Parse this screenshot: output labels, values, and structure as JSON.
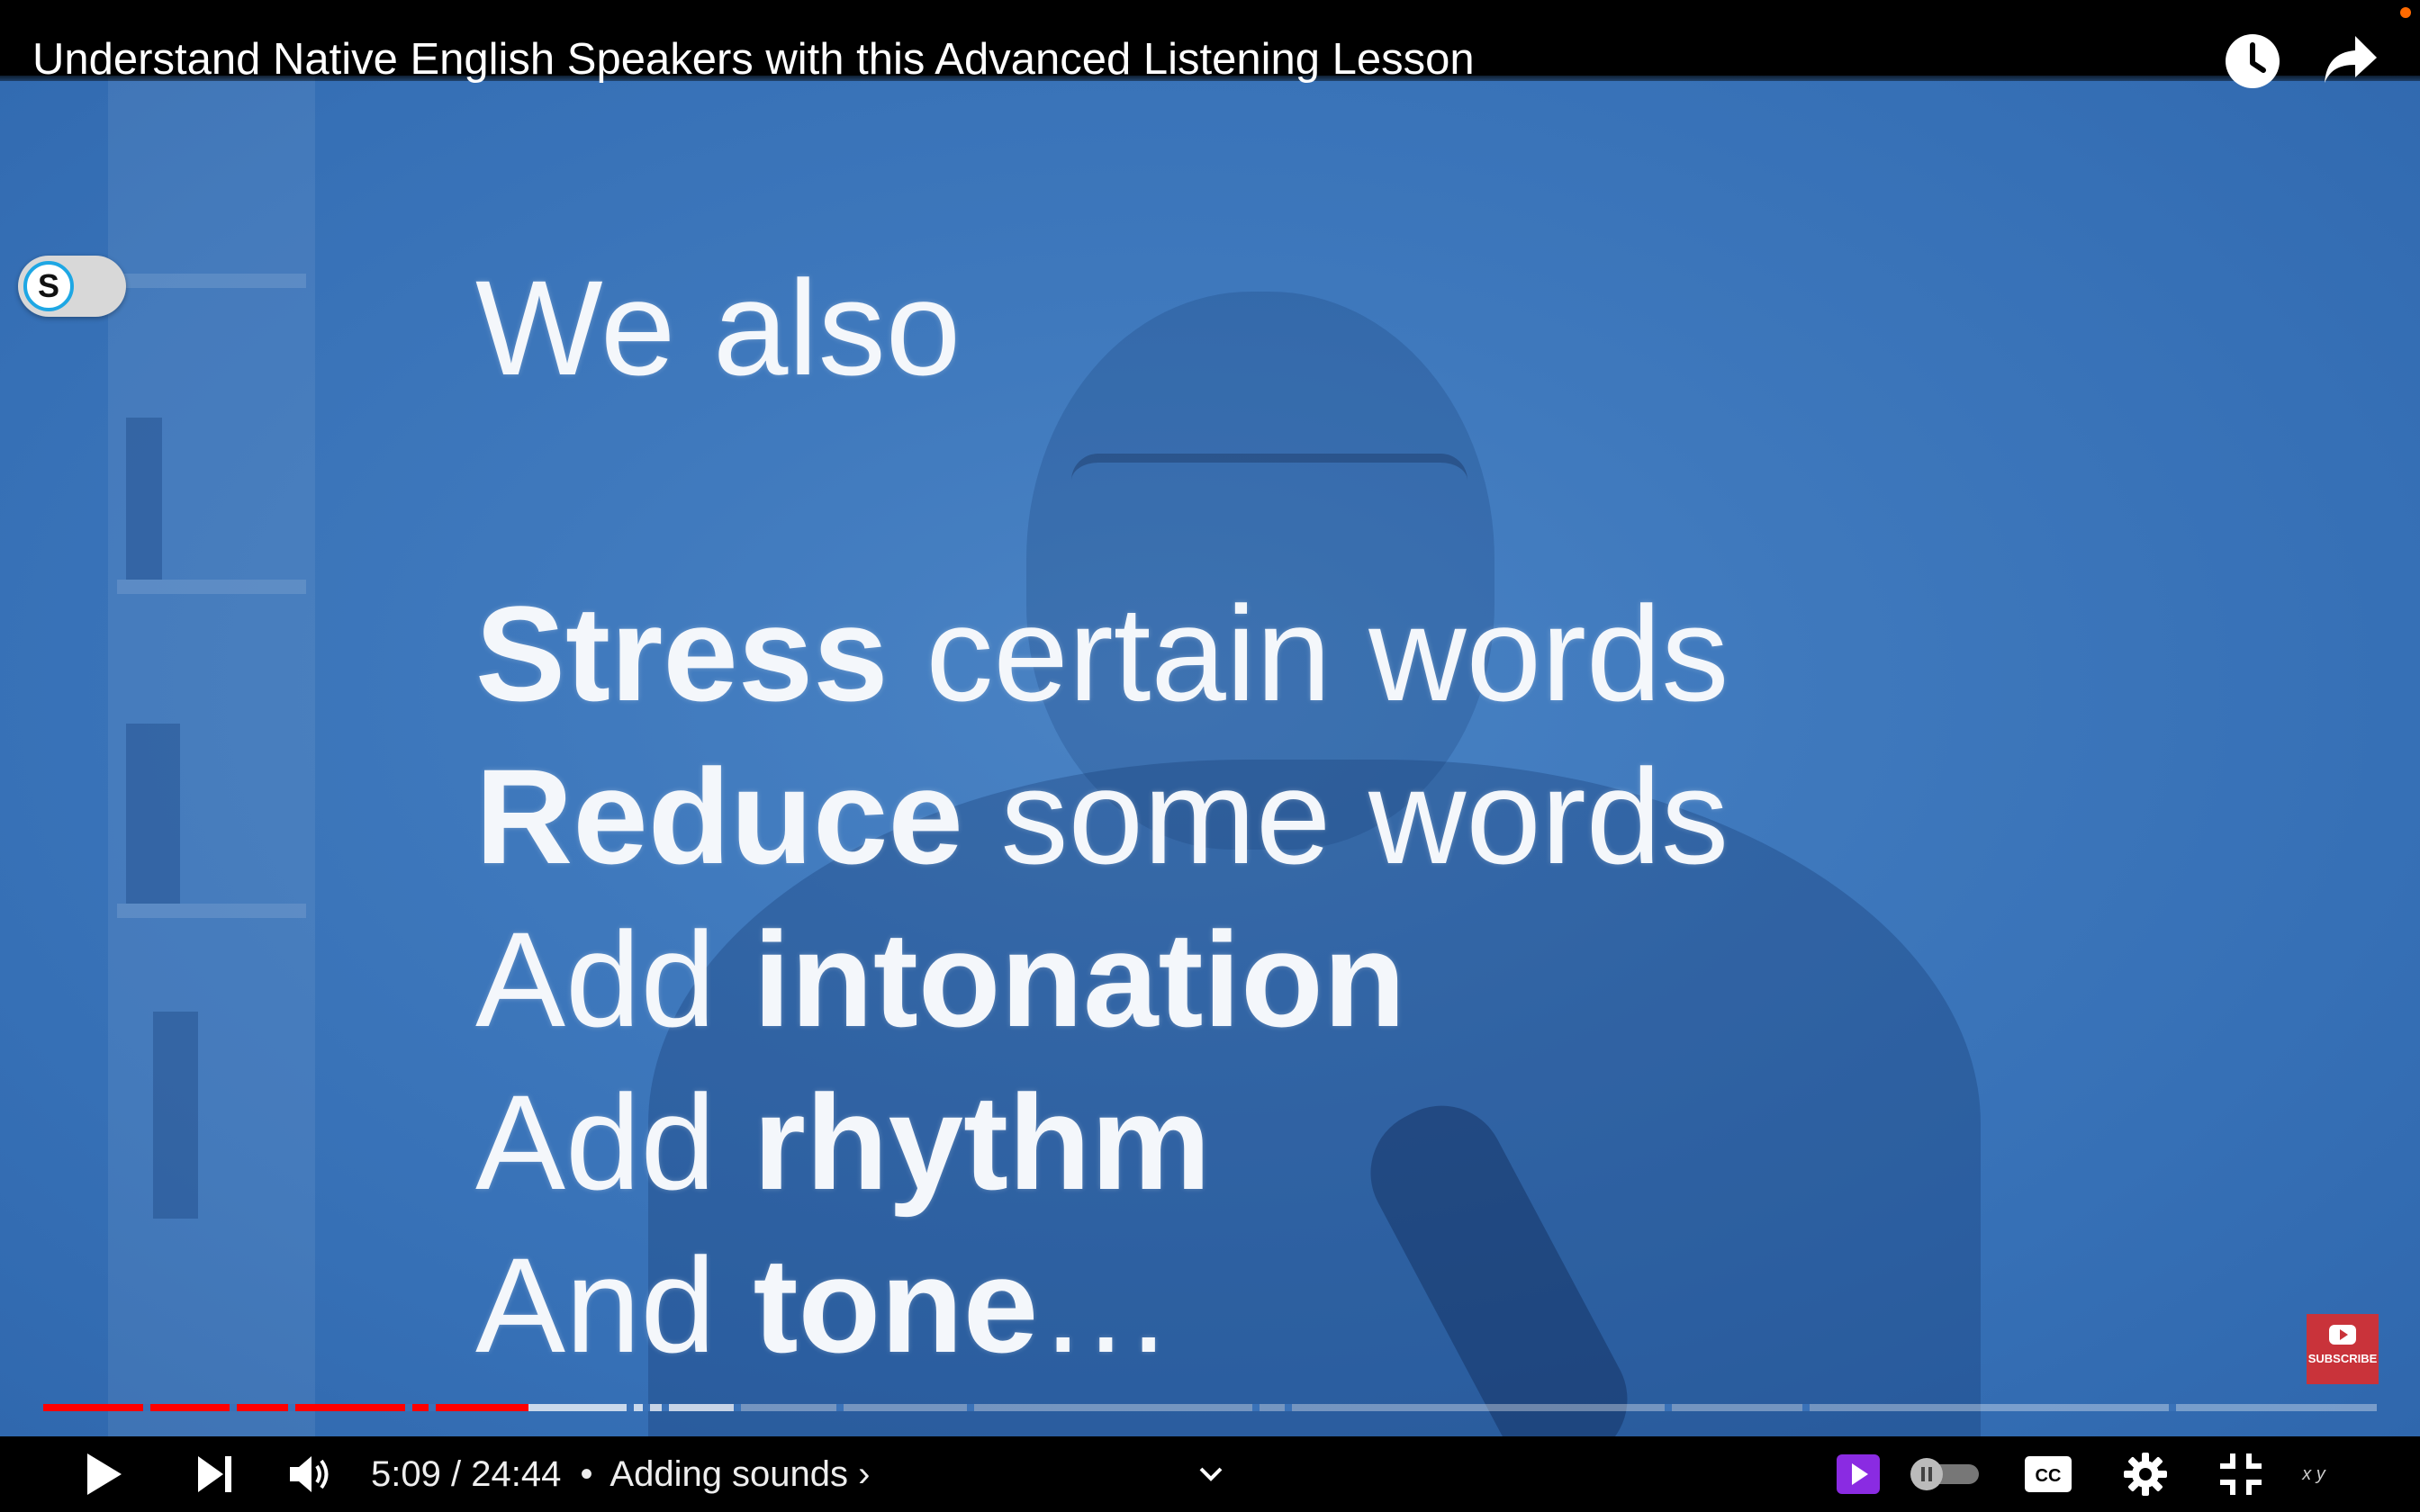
{
  "video": {
    "title": "Understand Native English Speakers with this Advanced Listening Lesson",
    "slide_lines": [
      [
        {
          "t": "We also",
          "b": false
        }
      ],
      [
        {
          "t": "Stress",
          "b": true
        },
        {
          "t": " certain words",
          "b": false
        }
      ],
      [
        {
          "t": "Reduce",
          "b": true
        },
        {
          "t": " some words",
          "b": false
        }
      ],
      [
        {
          "t": "Add ",
          "b": false
        },
        {
          "t": "intonation",
          "b": true
        }
      ],
      [
        {
          "t": "Add ",
          "b": false
        },
        {
          "t": "rhythm",
          "b": true
        }
      ],
      [
        {
          "t": "And ",
          "b": false
        },
        {
          "t": "tone",
          "b": true
        },
        {
          "t": "…",
          "b": false
        }
      ]
    ],
    "extension_toggle_letter": "S",
    "subscribe_label": "SUBSCRIBE"
  },
  "top_icons": {
    "watch_later": "clock-icon",
    "share": "share-icon"
  },
  "player": {
    "current_time": "5:09",
    "duration": "24:44",
    "separator": "/",
    "bullet": "•",
    "chapter": "Adding sounds",
    "chapter_chevron": "›",
    "played_fraction": 0.208,
    "buffered_fraction": 0.297,
    "chapter_boundaries": [
      0.043,
      0.08,
      0.105,
      0.155,
      0.165,
      0.25,
      0.257,
      0.265,
      0.296,
      0.34,
      0.396,
      0.518,
      0.532,
      0.695,
      0.754,
      0.911
    ],
    "right_icons": [
      "miniplayer-play-icon",
      "autoplay-toggle",
      "cc-icon",
      "settings-gear-icon",
      "exit-fullscreen-icon"
    ],
    "extra_glyph": "x y"
  },
  "colors": {
    "progress_played": "#ff0000",
    "subscribe_bg": "#c9333a",
    "extension_ring": "#1ea7e4",
    "miniplayer_icon": "#8a2be2"
  }
}
